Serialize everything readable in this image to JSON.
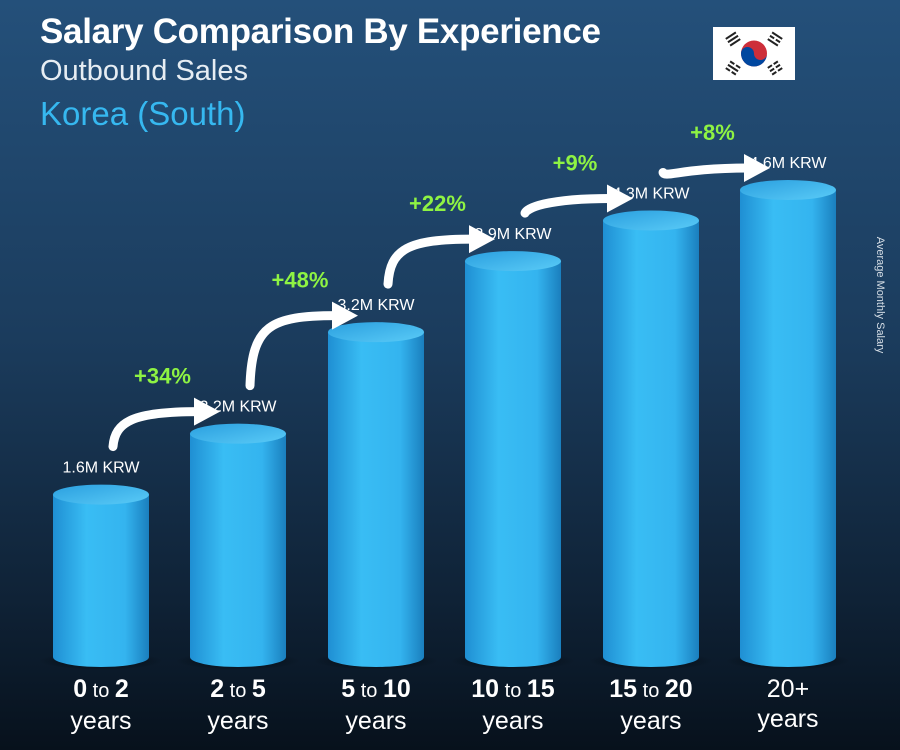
{
  "header": {
    "title": "Salary Comparison By Experience",
    "subtitle": "Outbound Sales",
    "location": "Korea (South)",
    "flag_icon": "south-korea-flag-icon"
  },
  "side_label": "Average Monthly Salary",
  "categories": [
    {
      "a": "0",
      "mid": "to",
      "b": "2",
      "c": "years"
    },
    {
      "a": "2",
      "mid": "to",
      "b": "5",
      "c": "years"
    },
    {
      "a": "5",
      "mid": "to",
      "b": "10",
      "c": "years"
    },
    {
      "a": "10",
      "mid": "to",
      "b": "15",
      "c": "years"
    },
    {
      "a": "15",
      "mid": "to",
      "b": "20",
      "c": "years"
    },
    {
      "a": "20+",
      "mid": "",
      "b": "",
      "c": "years"
    }
  ],
  "colors": {
    "bar": "#33b5ee",
    "bar_dark": "#1d86c6",
    "bar_top": "#4ec4f5",
    "increase": "#8ef343",
    "value_label": "#ffffff",
    "location": "#36b8f0"
  },
  "chart_data": {
    "type": "bar",
    "title": "Salary Comparison By Experience",
    "subtitle": "Outbound Sales",
    "ylabel": "Average Monthly Salary",
    "categories": [
      "0 to 2 years",
      "2 to 5 years",
      "5 to 10 years",
      "10 to 15 years",
      "15 to 20 years",
      "20+ years"
    ],
    "values": [
      1.6,
      2.2,
      3.2,
      3.9,
      4.3,
      4.6
    ],
    "unit": "M KRW",
    "value_labels": [
      "1.6M KRW",
      "2.2M KRW",
      "3.2M KRW",
      "3.9M KRW",
      "4.3M KRW",
      "4.6M KRW"
    ],
    "increases": [
      "+34%",
      "+48%",
      "+22%",
      "+9%",
      "+8%"
    ],
    "grid": false,
    "legend": "none"
  }
}
